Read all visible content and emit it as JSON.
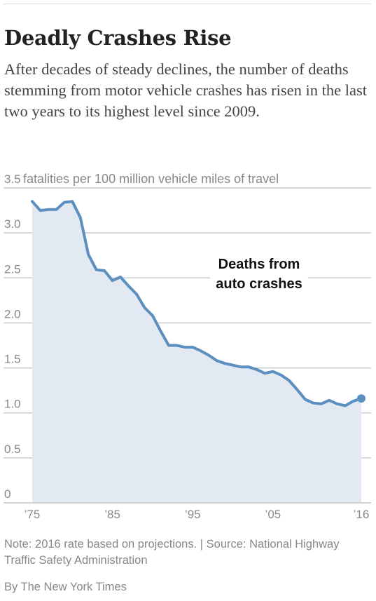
{
  "header": {
    "title": "Deadly Crashes Rise",
    "subtitle": "After decades of steady declines, the number of deaths stemming from motor vehicle crashes has risen in the last two years to its highest level since 2009."
  },
  "footer": {
    "note": "Note: 2016 rate based on projections. | Source: National Highway Traffic Safety Administration",
    "credit": "By The New York Times"
  },
  "colors": {
    "line": "#5b8fc0",
    "area": "#e2e9f2",
    "grid": "#cccccc"
  },
  "chart_data": {
    "type": "area",
    "title": "Deadly Crashes Rise",
    "ylabel": "fatalities per 100 million vehicle miles of travel",
    "ylim": [
      0,
      3.5
    ],
    "xlim": [
      1975,
      2016
    ],
    "yticks": [
      {
        "value": 0,
        "label": "0"
      },
      {
        "value": 0.5,
        "label": "0.5"
      },
      {
        "value": 1.0,
        "label": "1.0"
      },
      {
        "value": 1.5,
        "label": "1.5"
      },
      {
        "value": 2.0,
        "label": "2.0"
      },
      {
        "value": 2.5,
        "label": "2.5"
      },
      {
        "value": 3.0,
        "label": "3.0"
      },
      {
        "value": 3.5,
        "label": "3.5"
      }
    ],
    "xticks": [
      {
        "value": 1975,
        "label": "’75"
      },
      {
        "value": 1985,
        "label": "’85"
      },
      {
        "value": 1995,
        "label": "’95"
      },
      {
        "value": 2005,
        "label": "’05"
      },
      {
        "value": 2016,
        "label": "’16"
      }
    ],
    "grid": true,
    "annotation": {
      "lines": [
        "Deaths from",
        "auto crashes"
      ],
      "x": 1988,
      "y": 2.55
    },
    "series": [
      {
        "x": [
          1975,
          1976,
          1977,
          1978,
          1979,
          1980,
          1981,
          1982,
          1983,
          1984,
          1985,
          1986,
          1987,
          1988,
          1989,
          1990,
          1991,
          1992,
          1993,
          1994,
          1995,
          1996,
          1997,
          1998,
          1999,
          2000,
          2001,
          2002,
          2003,
          2004,
          2005,
          2006,
          2007,
          2008,
          2009,
          2010,
          2011,
          2012,
          2013,
          2014,
          2015,
          2016
        ],
        "y": [
          3.35,
          3.25,
          3.26,
          3.26,
          3.34,
          3.35,
          3.17,
          2.76,
          2.59,
          2.58,
          2.47,
          2.51,
          2.41,
          2.32,
          2.17,
          2.08,
          1.91,
          1.75,
          1.75,
          1.73,
          1.73,
          1.69,
          1.64,
          1.58,
          1.55,
          1.53,
          1.51,
          1.51,
          1.48,
          1.44,
          1.46,
          1.42,
          1.36,
          1.26,
          1.15,
          1.11,
          1.1,
          1.14,
          1.1,
          1.08,
          1.13,
          1.16
        ],
        "highlight_last": true
      }
    ]
  }
}
